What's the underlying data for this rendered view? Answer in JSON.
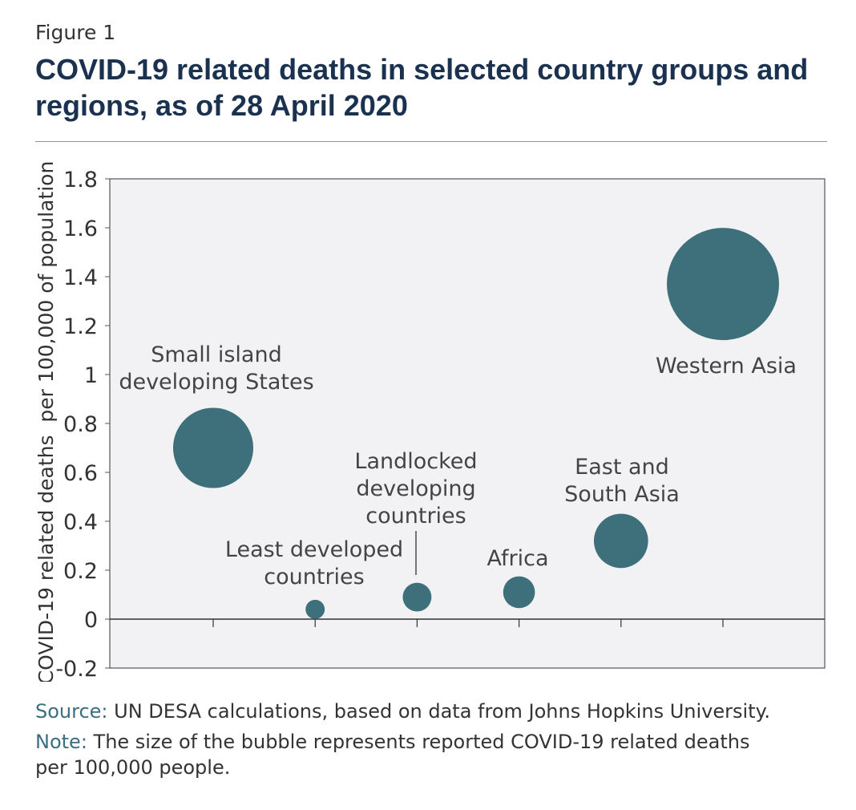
{
  "figure": {
    "label": "Figure 1",
    "title": "COVID-19 related deaths in selected country groups and regions, as of 28 April 2020"
  },
  "colors": {
    "bubble": "#3e707c",
    "plot_background": "#f2f2f4",
    "title": "#1a3150",
    "note_label": "#3b6e80"
  },
  "chart_data": {
    "type": "scatter",
    "subtype": "bubble",
    "ylabel": "COVID-19 related deaths  per 100,000 of population",
    "xlabel": "",
    "ylim": [
      -0.2,
      1.8
    ],
    "yticks": [
      "1.8",
      "1.6",
      "1.4",
      "1.2",
      "1",
      "0.8",
      "0.6",
      "0.4",
      "0.2",
      "0",
      "-0.2"
    ],
    "ytick_values": [
      1.8,
      1.6,
      1.4,
      1.2,
      1.0,
      0.8,
      0.6,
      0.4,
      0.2,
      0,
      -0.2
    ],
    "categories": [
      "Small island developing States",
      "Least developed countries",
      "Landlocked developing countries",
      "Africa",
      "East and South Asia",
      "Western Asia"
    ],
    "label_lines": [
      [
        "Small island",
        "developing States"
      ],
      [
        "Least developed",
        "countries"
      ],
      [
        "Landlocked",
        "developing",
        "countries"
      ],
      [
        "Africa"
      ],
      [
        "East and",
        "South Asia"
      ],
      [
        "Western Asia"
      ]
    ],
    "x": [
      1,
      2,
      3,
      4,
      5,
      6
    ],
    "values": [
      0.7,
      0.04,
      0.09,
      0.11,
      0.32,
      1.37
    ],
    "sizes": [
      0.7,
      0.04,
      0.09,
      0.11,
      0.32,
      1.37
    ],
    "grid": false,
    "legend": "none"
  },
  "notes": {
    "source_label": "Source:",
    "source_text": " UN DESA calculations, based on data from Johns Hopkins University.",
    "note_label": "Note:",
    "note_text": " The size of the bubble represents reported COVID-19 related deaths",
    "note_text_2": "per 100,000 people."
  }
}
